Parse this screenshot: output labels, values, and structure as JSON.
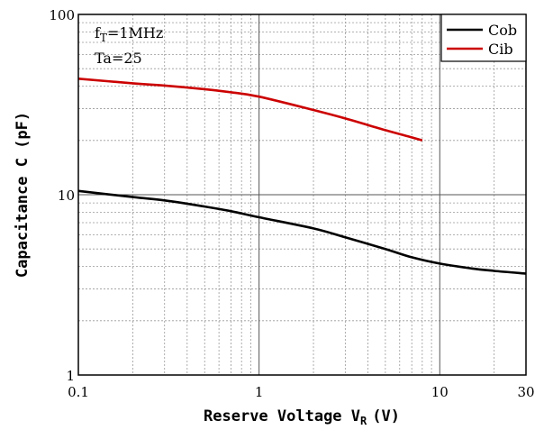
{
  "chart_data": {
    "type": "line",
    "title": "",
    "xlabel": "Reserve Voltage V",
    "xlabel_sub": "R",
    "xlabel_suffix": "(V)",
    "ylabel": "Capacitance C (pF)",
    "xscale": "log",
    "yscale": "log",
    "xlim": [
      0.1,
      30
    ],
    "ylim": [
      1,
      100
    ],
    "grid": true,
    "legend_position": "top-right",
    "x_tick_labels": [
      {
        "value": 0.1,
        "label": "0.1"
      },
      {
        "value": 1,
        "label": "1"
      },
      {
        "value": 10,
        "label": "10"
      },
      {
        "value": 30,
        "label": "30"
      }
    ],
    "y_tick_labels": [
      {
        "value": 1,
        "label": "1"
      },
      {
        "value": 10,
        "label": "10"
      },
      {
        "value": 100,
        "label": "100"
      }
    ],
    "annotations": [
      {
        "main": "f",
        "sub": "T",
        "rest": "=1MHz"
      },
      {
        "main": "Ta=25",
        "sub": "",
        "rest": ""
      }
    ],
    "series": [
      {
        "name": "Cob",
        "color": "#000000",
        "points": [
          [
            0.1,
            10.5
          ],
          [
            0.2,
            9.7
          ],
          [
            0.3,
            9.3
          ],
          [
            0.5,
            8.6
          ],
          [
            0.7,
            8.1
          ],
          [
            1,
            7.5
          ],
          [
            2,
            6.5
          ],
          [
            3,
            5.8
          ],
          [
            5,
            5.0
          ],
          [
            7,
            4.5
          ],
          [
            10,
            4.15
          ],
          [
            15,
            3.9
          ],
          [
            20,
            3.78
          ],
          [
            30,
            3.65
          ]
        ]
      },
      {
        "name": "Cib",
        "color": "#cc0000",
        "points": [
          [
            0.1,
            44
          ],
          [
            0.2,
            41.5
          ],
          [
            0.3,
            40.3
          ],
          [
            0.5,
            38.5
          ],
          [
            0.7,
            37
          ],
          [
            1,
            35
          ],
          [
            2,
            29.5
          ],
          [
            3,
            26.5
          ],
          [
            5,
            22.8
          ],
          [
            7,
            20.8
          ],
          [
            8,
            20
          ]
        ]
      }
    ]
  }
}
